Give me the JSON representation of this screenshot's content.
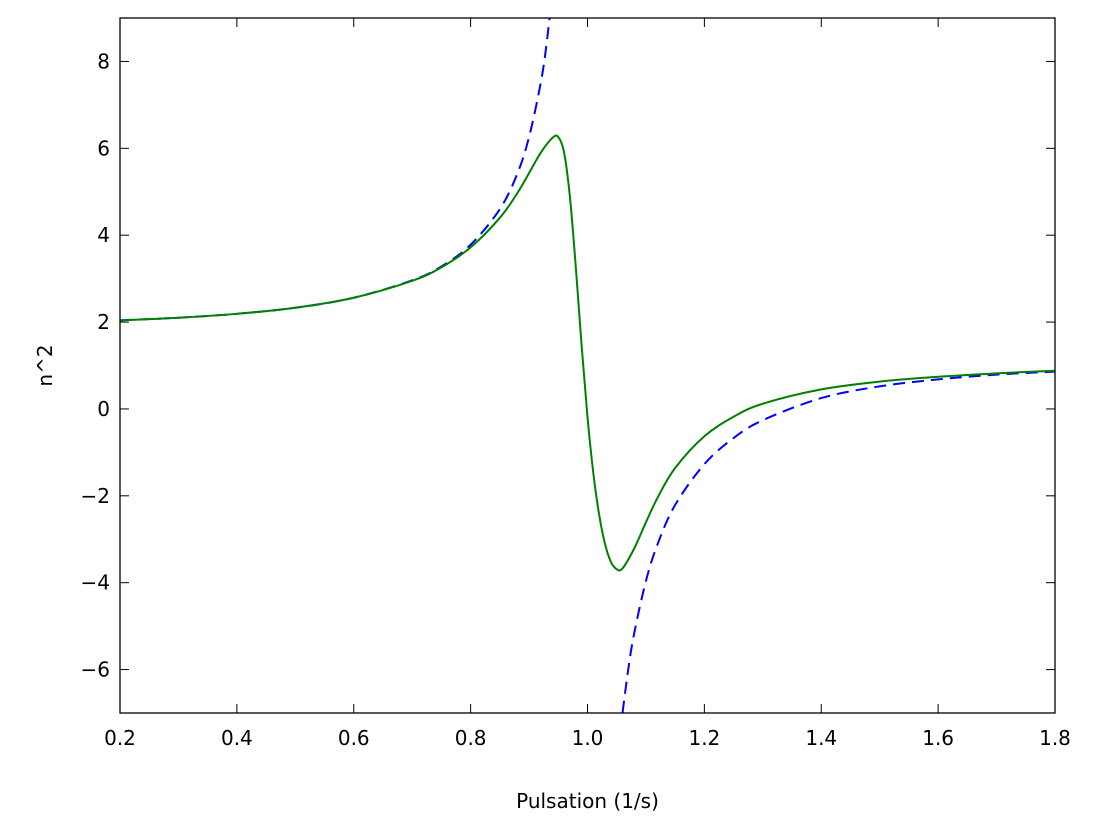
{
  "chart_data": {
    "type": "line",
    "xlabel": "Pulsation (1/s)",
    "ylabel": "n^2",
    "xlim": [
      0.2,
      1.8
    ],
    "ylim": [
      -7,
      9
    ],
    "grid": false,
    "x_ticks": [
      0.2,
      0.4,
      0.6,
      0.8,
      1.0,
      1.2,
      1.4,
      1.6,
      1.8
    ],
    "x_tick_labels": [
      "0.2",
      "0.4",
      "0.6",
      "0.8",
      "1.0",
      "1.2",
      "1.4",
      "1.6",
      "1.8"
    ],
    "y_ticks": [
      -6,
      -4,
      -2,
      0,
      2,
      4,
      6,
      8
    ],
    "y_tick_labels": [
      "−6",
      "−4",
      "−2",
      "0",
      "2",
      "4",
      "6",
      "8"
    ],
    "series": [
      {
        "color": "#0000ff",
        "style": "dashed",
        "x": [
          0.2,
          0.3,
          0.4,
          0.5,
          0.6,
          0.7,
          0.75,
          0.8,
          0.85,
          0.88,
          0.9,
          0.92,
          0.93,
          0.94,
          null,
          1.06,
          1.07,
          1.08,
          1.1,
          1.12,
          1.15,
          1.2,
          1.25,
          1.3,
          1.4,
          1.5,
          1.6,
          1.7,
          1.8
        ],
        "y": [
          2.04,
          2.1,
          2.19,
          2.33,
          2.56,
          2.96,
          3.28,
          3.78,
          4.6,
          5.42,
          6.26,
          7.51,
          8.41,
          9.61,
          null,
          -6.99,
          -5.97,
          -5.16,
          -3.96,
          -3.11,
          -2.21,
          -1.27,
          -0.67,
          -0.26,
          0.25,
          0.52,
          0.68,
          0.79,
          0.86
        ]
      },
      {
        "color": "#008000",
        "style": "solid",
        "x": [
          0.2,
          0.3,
          0.4,
          0.5,
          0.6,
          0.7,
          0.75,
          0.8,
          0.85,
          0.88,
          0.9,
          0.92,
          0.94,
          0.95,
          0.96,
          0.97,
          0.98,
          0.99,
          1.0,
          1.01,
          1.02,
          1.03,
          1.04,
          1.05,
          1.06,
          1.08,
          1.1,
          1.12,
          1.15,
          1.2,
          1.25,
          1.3,
          1.4,
          1.5,
          1.6,
          1.7,
          1.8
        ],
        "y": [
          2.04,
          2.1,
          2.19,
          2.33,
          2.56,
          2.95,
          3.26,
          3.72,
          4.4,
          4.97,
          5.43,
          5.9,
          6.24,
          6.26,
          5.9,
          4.87,
          3.26,
          1.45,
          -0.19,
          -1.48,
          -2.44,
          -3.11,
          -3.52,
          -3.69,
          -3.67,
          -3.21,
          -2.61,
          -2.04,
          -1.36,
          -0.63,
          -0.18,
          0.12,
          0.45,
          0.63,
          0.74,
          0.82,
          0.88
        ]
      }
    ]
  }
}
